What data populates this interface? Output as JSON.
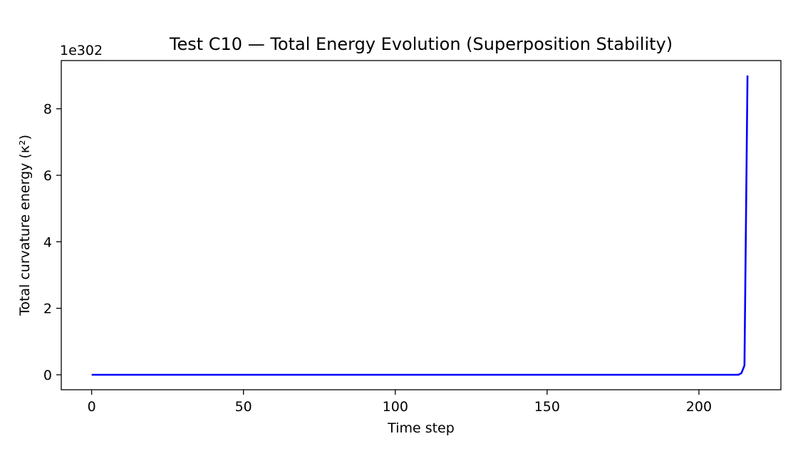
{
  "chart_data": {
    "type": "line",
    "title": "Test C10 — Total Energy Evolution (Superposition Stability)",
    "xlabel": "Time step",
    "ylabel": "Total curvature energy (κ²)",
    "y_offset_label": "1e302",
    "y_scale_exponent": 302,
    "xlim": [
      -10,
      227
    ],
    "ylim": [
      -0.45,
      9.45
    ],
    "x_ticks": [
      0,
      50,
      100,
      150,
      200
    ],
    "x_tick_labels": [
      "0",
      "50",
      "100",
      "150",
      "200"
    ],
    "y_ticks": [
      0,
      2,
      4,
      6,
      8
    ],
    "y_tick_labels": [
      "0",
      "2",
      "4",
      "6",
      "8"
    ],
    "grid": false,
    "legend": "none",
    "series": [
      {
        "color": "#0000ff",
        "x": [
          0,
          50,
          100,
          150,
          200,
          213,
          214,
          215,
          216
        ],
        "y": [
          0,
          0,
          0,
          0,
          0,
          0,
          0.05,
          0.28,
          9.0
        ]
      }
    ]
  }
}
